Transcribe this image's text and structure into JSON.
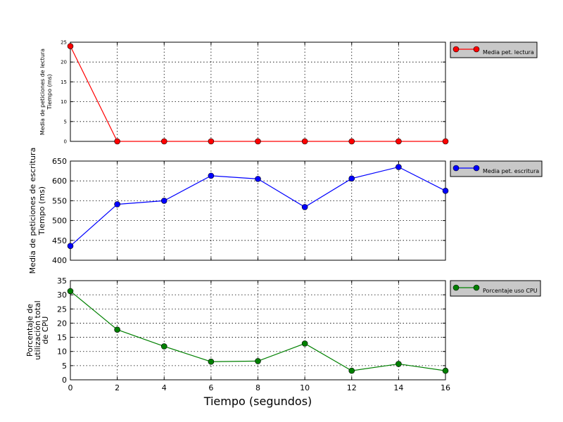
{
  "chart_data": [
    {
      "type": "line",
      "ylabel": [
        "Media de peticiones de lectura",
        "Tiempo (ms)"
      ],
      "xlim": [
        0,
        16
      ],
      "ylim": [
        0,
        25
      ],
      "yticks": [
        "0",
        "5",
        "10",
        "15",
        "20",
        "25"
      ],
      "grid": true,
      "legend_position": "outside-right",
      "series": [
        {
          "name": "Media pet. lectura",
          "color": "#ff0000",
          "x": [
            0,
            2,
            4,
            6,
            8,
            10,
            12,
            14,
            16
          ],
          "y": [
            24,
            0,
            0,
            0,
            0,
            0,
            0,
            0,
            0
          ]
        }
      ]
    },
    {
      "type": "line",
      "ylabel": [
        "Media de peticiones de escritura",
        "Tiempo (ms)"
      ],
      "xlim": [
        0,
        16
      ],
      "ylim": [
        400,
        650
      ],
      "yticks": [
        "400",
        "450",
        "500",
        "550",
        "600",
        "650"
      ],
      "grid": true,
      "legend_position": "outside-right",
      "series": [
        {
          "name": "Media pet. escritura",
          "color": "#0000ff",
          "x": [
            0,
            2,
            4,
            6,
            8,
            10,
            12,
            14,
            16
          ],
          "y": [
            436,
            541,
            550,
            613,
            605,
            534,
            606,
            635,
            575
          ]
        }
      ]
    },
    {
      "type": "line",
      "ylabel": [
        "Porcentaje de",
        "utilización total",
        "de CPU"
      ],
      "xlabel": "Tiempo (segundos)",
      "xlim": [
        0,
        16
      ],
      "ylim": [
        0,
        35
      ],
      "xticks": [
        "0",
        "2",
        "4",
        "6",
        "8",
        "10",
        "12",
        "14",
        "16"
      ],
      "yticks": [
        "0",
        "5",
        "10",
        "15",
        "20",
        "25",
        "30",
        "35"
      ],
      "grid": true,
      "legend_position": "outside-right",
      "series": [
        {
          "name": "Porcentaje uso CPU",
          "color": "#008000",
          "x": [
            0,
            2,
            4,
            6,
            8,
            10,
            12,
            14,
            16
          ],
          "y": [
            31.3,
            17.7,
            11.8,
            6.4,
            6.6,
            12.8,
            3.2,
            5.6,
            3.2
          ]
        }
      ]
    }
  ]
}
